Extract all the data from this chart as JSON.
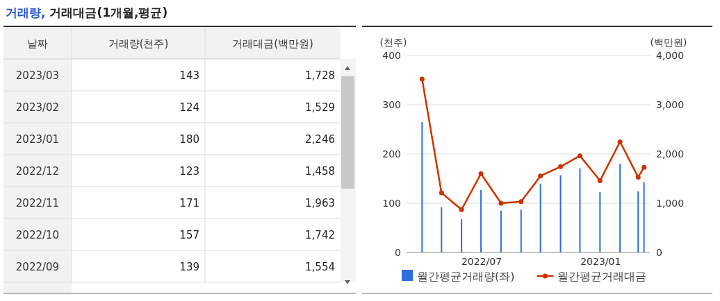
{
  "chart_data": [
    {
      "type": "other",
      "title": "거래량, 거래대금(1개월,평균)",
      "xlabel": "날짜",
      "categories": [
        "2023/03",
        "2023/02",
        "2023/01",
        "2022/12",
        "2022/11",
        "2022/10",
        "2022/09"
      ],
      "annotations": [
        "거래량(천주)",
        "거래대금(백만원)",
        "143",
        "1,728",
        "124",
        "1,529",
        "180",
        "2,246",
        "123",
        "1,458",
        "171",
        "1,963",
        "157",
        "1,742",
        "139",
        "1,554"
      ]
    },
    {
      "type": "bar",
      "x": [
        "2022-03-31",
        "2022-04-30",
        "2022-05-31",
        "2022-06-30",
        "2022-07-31",
        "2022-08-31",
        "2022-09-30",
        "2022-10-31",
        "2022-11-30",
        "2022-12-31",
        "2023-01-31",
        "2023-02-28",
        "2023-03-09"
      ],
      "series": [
        {
          "name": "월간평균거래량(좌)",
          "type": "bar",
          "color": "#2f6fdc",
          "values": [
            265,
            92,
            68,
            127,
            85,
            87,
            139,
            157,
            171,
            123,
            180,
            124,
            143
          ]
        },
        {
          "name": "월간평균거래대금",
          "type": "line",
          "axis": "y2",
          "color": "#cc3300",
          "marker": "circle",
          "values": [
            3520,
            1210,
            870,
            1600,
            1000,
            1030,
            1554,
            1742,
            1963,
            1458,
            2246,
            1529,
            1728
          ]
        }
      ],
      "ylabel": "(천주)",
      "y2label": "(백만원)",
      "ylim": [
        0,
        400
      ],
      "yticks": [
        0,
        100,
        200,
        300,
        400
      ],
      "y2lim": [
        0,
        4000
      ],
      "y2ticks": [
        {
          "value": 0,
          "label": "0"
        },
        {
          "value": 1000,
          "label": "1,000"
        },
        {
          "value": 2000,
          "label": "2,000"
        },
        {
          "value": 3000,
          "label": "3,000"
        },
        {
          "value": 4000,
          "label": "4,000"
        }
      ],
      "xlim": [
        "2022-03-07",
        "2023-03-18"
      ],
      "xticks": [
        {
          "value": "2022-07-01",
          "label": "2022/07"
        },
        {
          "value": "2023-01-01",
          "label": "2023/01"
        }
      ],
      "grid": "y",
      "legend": "bottom"
    }
  ]
}
